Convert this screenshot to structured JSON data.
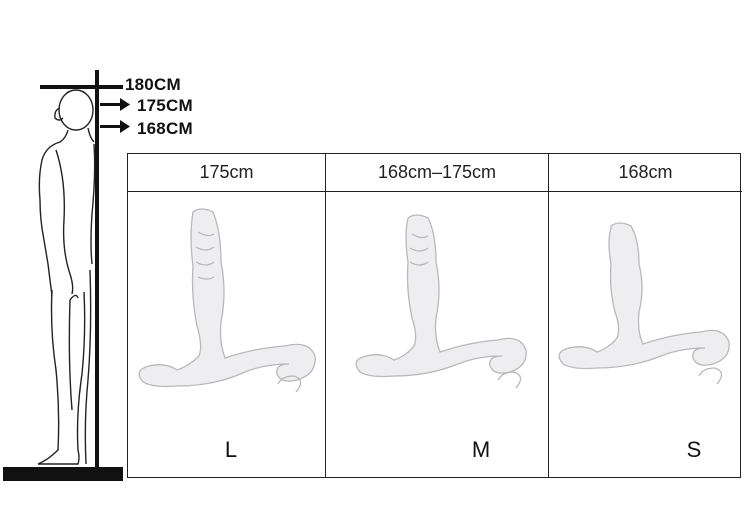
{
  "height_markers": [
    "180CM",
    "175CM",
    "168CM"
  ],
  "sizes": [
    {
      "height_range": "175cm",
      "label": "L"
    },
    {
      "height_range": "168cm–175cm",
      "label": "M"
    },
    {
      "height_range": "168cm",
      "label": "S"
    }
  ],
  "colors": {
    "line": "#111111",
    "product": "#eeeef0",
    "product_shade": "#c8c8cc"
  }
}
